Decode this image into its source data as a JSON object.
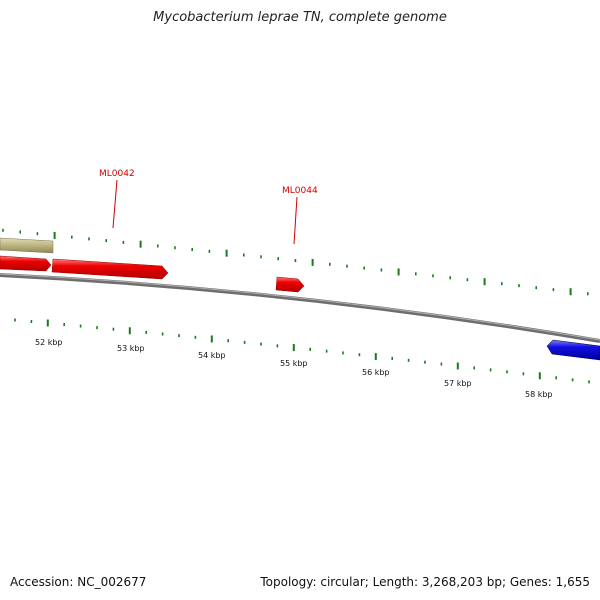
{
  "title": "Mycobacterium leprae TN, complete genome",
  "footer": {
    "accession": "Accession: NC_002677",
    "summary": "Topology: circular; Length: 3,268,203 bp; Genes: 1,655"
  },
  "scale": {
    "tick_labels": [
      "52 kbp",
      "53 kbp",
      "54 kbp",
      "55 kbp",
      "56 kbp",
      "57 kbp",
      "58 kbp"
    ]
  },
  "genes": {
    "labels": [
      "ML0042",
      "ML0044"
    ]
  },
  "colors": {
    "backbone": "#808080",
    "forward_gene": "#ee0000",
    "reverse_gene": "#1010e0",
    "other_feature": "#bcb47e",
    "ticks": "#1a7a1a",
    "gene_label": "#cc0000"
  }
}
